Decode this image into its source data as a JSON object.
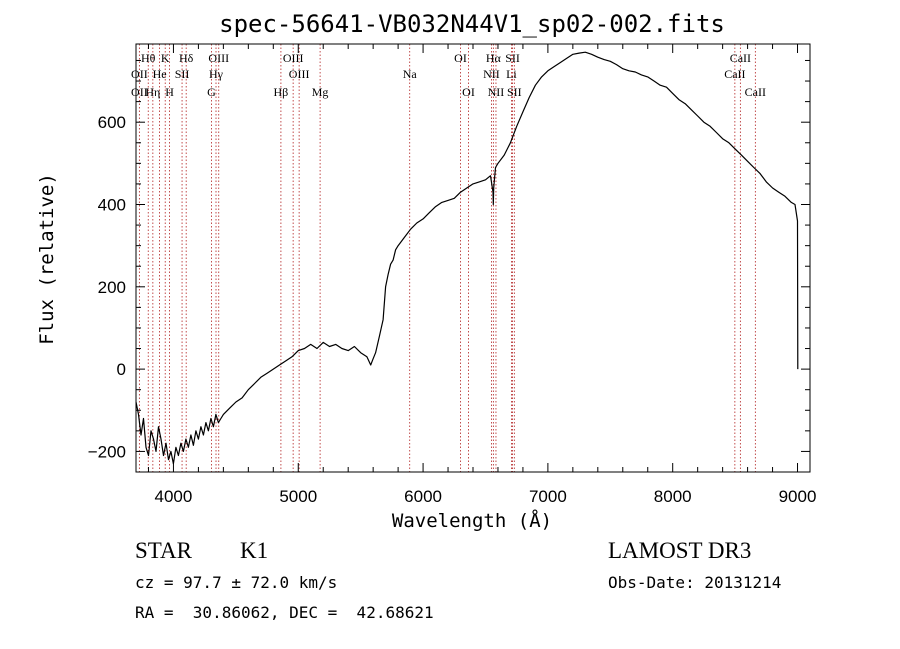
{
  "chart_data": {
    "type": "line",
    "title": "spec-56641-VB032N44V1_sp02-002.fits",
    "xlabel": "Wavelength (Å)",
    "ylabel": "Flux (relative)",
    "xlim": [
      3700,
      9100
    ],
    "ylim": [
      -250,
      790
    ],
    "x_ticks": [
      4000,
      5000,
      6000,
      7000,
      8000,
      9000
    ],
    "x_tick_labels": [
      "4000",
      "5000",
      "6000",
      "7000",
      "8000",
      "9000"
    ],
    "y_ticks": [
      -200,
      0,
      200,
      400,
      600
    ],
    "y_tick_labels": [
      "−200",
      "0",
      "200",
      "400",
      "600"
    ],
    "grid": false,
    "series": [
      {
        "name": "spectrum",
        "x": [
          3700,
          3720,
          3740,
          3760,
          3780,
          3800,
          3820,
          3840,
          3860,
          3880,
          3900,
          3920,
          3940,
          3960,
          3980,
          4000,
          4020,
          4040,
          4060,
          4080,
          4100,
          4120,
          4140,
          4160,
          4180,
          4200,
          4220,
          4240,
          4260,
          4280,
          4300,
          4320,
          4340,
          4360,
          4380,
          4400,
          4450,
          4500,
          4550,
          4600,
          4650,
          4700,
          4750,
          4800,
          4850,
          4900,
          4950,
          5000,
          5050,
          5100,
          5150,
          5200,
          5250,
          5300,
          5350,
          5400,
          5450,
          5500,
          5550,
          5580,
          5600,
          5620,
          5650,
          5680,
          5700,
          5720,
          5740,
          5760,
          5780,
          5800,
          5850,
          5900,
          5950,
          6000,
          6050,
          6100,
          6150,
          6200,
          6250,
          6300,
          6350,
          6400,
          6450,
          6500,
          6540,
          6560,
          6563,
          6566,
          6580,
          6600,
          6650,
          6700,
          6750,
          6800,
          6850,
          6900,
          6950,
          7000,
          7050,
          7100,
          7150,
          7200,
          7250,
          7300,
          7350,
          7400,
          7450,
          7500,
          7550,
          7600,
          7650,
          7700,
          7750,
          7800,
          7850,
          7900,
          7950,
          8000,
          8050,
          8100,
          8150,
          8200,
          8250,
          8300,
          8350,
          8400,
          8450,
          8500,
          8550,
          8600,
          8650,
          8700,
          8750,
          8800,
          8850,
          8900,
          8950,
          8980,
          9000,
          9002
        ],
        "values": [
          -80,
          -110,
          -160,
          -120,
          -190,
          -210,
          -150,
          -170,
          -200,
          -140,
          -170,
          -210,
          -180,
          -220,
          -200,
          -230,
          -190,
          -210,
          -180,
          -200,
          -170,
          -190,
          -160,
          -185,
          -150,
          -170,
          -140,
          -160,
          -130,
          -150,
          -120,
          -140,
          -110,
          -130,
          -120,
          -110,
          -95,
          -80,
          -70,
          -50,
          -35,
          -20,
          -10,
          0,
          10,
          20,
          30,
          45,
          50,
          60,
          50,
          65,
          55,
          60,
          50,
          45,
          55,
          40,
          30,
          10,
          25,
          40,
          80,
          120,
          200,
          230,
          255,
          265,
          290,
          300,
          320,
          340,
          355,
          365,
          380,
          395,
          405,
          410,
          415,
          430,
          440,
          450,
          455,
          460,
          470,
          430,
          400,
          440,
          490,
          500,
          520,
          550,
          590,
          625,
          660,
          690,
          710,
          725,
          735,
          745,
          755,
          765,
          768,
          770,
          765,
          758,
          752,
          748,
          740,
          730,
          725,
          722,
          715,
          710,
          700,
          690,
          685,
          670,
          655,
          645,
          630,
          615,
          600,
          590,
          575,
          560,
          550,
          535,
          520,
          505,
          490,
          475,
          455,
          440,
          430,
          420,
          405,
          400,
          360,
          0
        ]
      }
    ],
    "lines": [
      {
        "name": "Hθ",
        "x": 3798,
        "row": 1
      },
      {
        "name": "OII",
        "x": 3727,
        "row": 2
      },
      {
        "name": "OII",
        "x": 3727,
        "row": 3
      },
      {
        "name": "Hη",
        "x": 3835,
        "row": 3
      },
      {
        "name": "He",
        "x": 3889,
        "row": 2
      },
      {
        "name": "K",
        "x": 3934,
        "row": 1
      },
      {
        "name": "SII",
        "x": 4069,
        "row": 2
      },
      {
        "name": "H",
        "x": 3969,
        "row": 3
      },
      {
        "name": "Hδ",
        "x": 4102,
        "row": 1
      },
      {
        "name": "OIII",
        "x": 4363,
        "row": 1
      },
      {
        "name": "Hγ",
        "x": 4341,
        "row": 2
      },
      {
        "name": "G",
        "x": 4305,
        "row": 3
      },
      {
        "name": "Hβ",
        "x": 4861,
        "row": 3
      },
      {
        "name": "OIII",
        "x": 4959,
        "row": 1
      },
      {
        "name": "OIII",
        "x": 5007,
        "row": 2
      },
      {
        "name": "Mg",
        "x": 5175,
        "row": 3
      },
      {
        "name": "Na",
        "x": 5893,
        "row": 2
      },
      {
        "name": "OI",
        "x": 6300,
        "row": 1
      },
      {
        "name": "OI",
        "x": 6364,
        "row": 3
      },
      {
        "name": "Hα",
        "x": 6563,
        "row": 1
      },
      {
        "name": "NII",
        "x": 6548,
        "row": 2
      },
      {
        "name": "NII",
        "x": 6584,
        "row": 3
      },
      {
        "name": "SII",
        "x": 6717,
        "row": 1
      },
      {
        "name": "Li",
        "x": 6708,
        "row": 2
      },
      {
        "name": "SII",
        "x": 6731,
        "row": 3
      },
      {
        "name": "CaII",
        "x": 8542,
        "row": 1
      },
      {
        "name": "CaII",
        "x": 8498,
        "row": 2
      },
      {
        "name": "CaII",
        "x": 8662,
        "row": 3
      }
    ]
  },
  "info": {
    "object_class": "STAR",
    "subclass": "K1",
    "survey": "LAMOST DR3",
    "cz": "cz = 97.7 ± 72.0 km/s",
    "obs_date": "Obs-Date: 20131214",
    "coords": "RA =  30.86062, DEC =  42.68621"
  },
  "colors": {
    "spectrum": "#000000",
    "line_marker": "#b22222",
    "axes": "#000000"
  }
}
